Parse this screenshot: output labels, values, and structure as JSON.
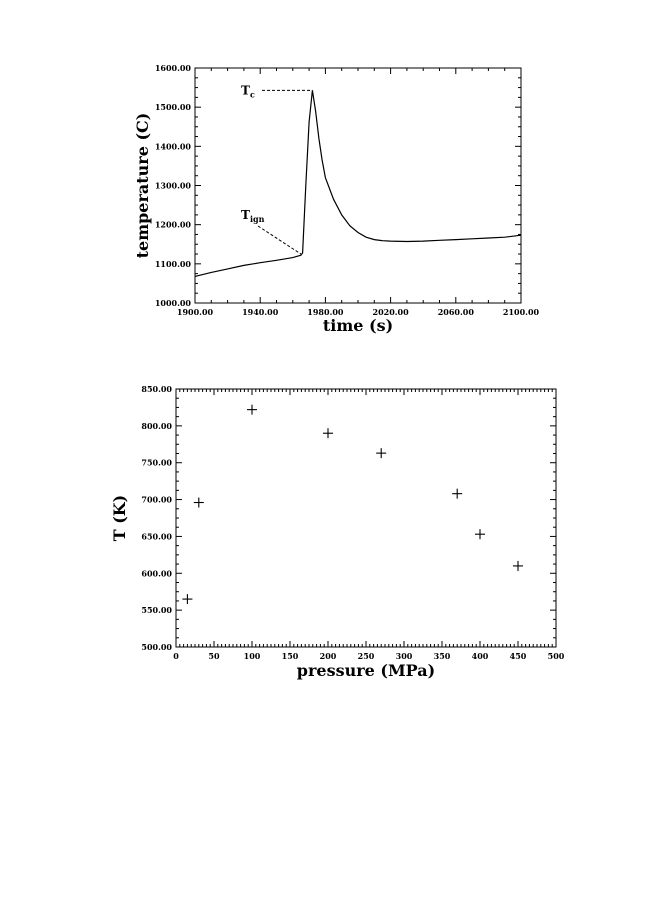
{
  "chart_data": [
    {
      "type": "line",
      "title": "",
      "xlabel": "time  (s)",
      "ylabel": "temperature  (C)",
      "xlim": [
        1900,
        2100
      ],
      "ylim": [
        1000,
        1600
      ],
      "xticks": [
        "1900.00",
        "1940.00",
        "1980.00",
        "2020.00",
        "2060.00",
        "2100.00"
      ],
      "yticks": [
        "1000.00",
        "1100.00",
        "1200.00",
        "1300.00",
        "1400.00",
        "1500.00",
        "1600.00"
      ],
      "grid": false,
      "annotations": [
        {
          "main": "T",
          "sub": "c",
          "x": 1972,
          "y": 1543
        },
        {
          "main": "T",
          "sub": "ign",
          "x": 1965,
          "y": 1125
        }
      ],
      "series": [
        {
          "x": [
            1900,
            1910,
            1920,
            1930,
            1940,
            1950,
            1960,
            1965,
            1966,
            1968,
            1970,
            1972,
            1974,
            1976,
            1978,
            1980,
            1985,
            1990,
            1995,
            2000,
            2005,
            2010,
            2015,
            2020,
            2030,
            2040,
            2050,
            2060,
            2070,
            2080,
            2090,
            2100
          ],
          "y": [
            1068,
            1078,
            1087,
            1096,
            1103,
            1109,
            1116,
            1122,
            1128,
            1300,
            1462,
            1543,
            1490,
            1420,
            1365,
            1320,
            1265,
            1225,
            1197,
            1180,
            1168,
            1162,
            1159,
            1158,
            1157,
            1158,
            1160,
            1162,
            1164,
            1166,
            1168,
            1173
          ]
        }
      ]
    },
    {
      "type": "scatter",
      "title": "",
      "xlabel": "pressure  (MPa)",
      "ylabel": "T  (K)",
      "xlim": [
        0,
        500
      ],
      "ylim": [
        500,
        850
      ],
      "xticks": [
        "0",
        "50",
        "100",
        "150",
        "200",
        "250",
        "300",
        "350",
        "400",
        "450",
        "500"
      ],
      "yticks": [
        "500.00",
        "550.00",
        "600.00",
        "650.00",
        "700.00",
        "750.00",
        "800.00",
        "850.00"
      ],
      "grid": false,
      "marker": "plus",
      "series": [
        {
          "x": [
            15,
            30,
            100,
            200,
            270,
            370,
            400,
            450
          ],
          "y": [
            565,
            696,
            822,
            790,
            763,
            708,
            653,
            610
          ]
        }
      ]
    }
  ]
}
